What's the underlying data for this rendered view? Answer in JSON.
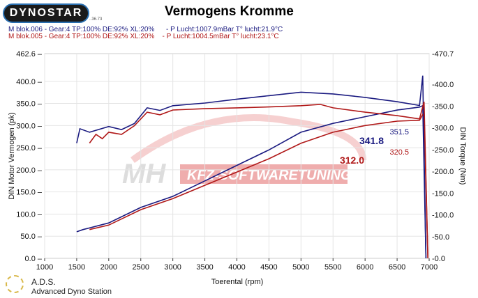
{
  "header": {
    "logo": "DYNOSTAR",
    "logo_sub": "..36.73",
    "title": "Vermogens Kromme",
    "run1": "M blok.006 - Gear:4 TP:100% DE:92% XL:20%      - P Lucht:1007.9mBar T° lucht:21.9°C",
    "run2": "M blok.005 - Gear:4 TP:100% DE:92% XL:20%    - P Lucht:1004.5mBar T° lucht:23.1°C"
  },
  "footer": {
    "ads_title": "A.D.S.",
    "ads_sub": "Advanced Dyno Station"
  },
  "watermark": "MH KFZ-SOFTWARETUNING",
  "chart_data": {
    "type": "line",
    "title": "Vermogens Kromme",
    "xlabel": "Toerental (rpm)",
    "ylabel": "DIN Motor Vermogen (pk)",
    "y2label": "DIN Torque (Nm)",
    "xlim": [
      1000,
      7000
    ],
    "ylim": [
      0,
      462.6
    ],
    "y2lim": [
      0,
      470.7
    ],
    "xticks": [
      "1000",
      "1500",
      "2000",
      "2500",
      "3000",
      "3500",
      "4000",
      "4500",
      "5000",
      "5500",
      "6000",
      "6500",
      "7000"
    ],
    "yticks": [
      "0.0",
      "50.0",
      "100.0",
      "150.0",
      "200.0",
      "250.0",
      "300.0",
      "350.0",
      "400.0",
      "462.6"
    ],
    "y2ticks": [
      "-0.0",
      "-50.0",
      "-100.0",
      "-150.0",
      "-200.0",
      "-250.0",
      "-300.0",
      "-350.0",
      "-400.0",
      "-470.7"
    ],
    "grid": true,
    "colors": {
      "blue": "#1a1a80",
      "red": "#b01818"
    },
    "series": [
      {
        "name": "M blok.006 vermogen",
        "axis": "left",
        "color": "#1a1a80",
        "peak_label": "341.8",
        "x": [
          1500,
          1600,
          2000,
          2500,
          3000,
          3500,
          4000,
          4500,
          5000,
          5500,
          6000,
          6500,
          6850,
          6900,
          6950
        ],
        "y": [
          60,
          65,
          80,
          115,
          140,
          175,
          210,
          245,
          285,
          305,
          320,
          335,
          341.8,
          345,
          0
        ]
      },
      {
        "name": "M blok.005 vermogen",
        "axis": "left",
        "color": "#b01818",
        "peak_label": "312.0",
        "x": [
          1700,
          2000,
          2500,
          3000,
          3500,
          4000,
          4500,
          5000,
          5500,
          6000,
          6500,
          6850,
          6920,
          6980
        ],
        "y": [
          65,
          75,
          110,
          135,
          165,
          195,
          225,
          260,
          285,
          300,
          310,
          312,
          330,
          0
        ]
      },
      {
        "name": "M blok.006 koppel",
        "axis": "right",
        "color": "#1a1a80",
        "peak_label": "351.5",
        "x": [
          1500,
          1550,
          1700,
          2000,
          2200,
          2400,
          2600,
          2800,
          3000,
          3500,
          4000,
          4500,
          5000,
          5500,
          6000,
          6500,
          6850,
          6900,
          6950
        ],
        "y": [
          265,
          298,
          290,
          303,
          296,
          310,
          346,
          340,
          351,
          357,
          366,
          374,
          382,
          378,
          370,
          360,
          351.5,
          420,
          0
        ]
      },
      {
        "name": "M blok.005 koppel",
        "axis": "right",
        "color": "#b01818",
        "peak_label": "320.5",
        "x": [
          1700,
          1800,
          1900,
          2000,
          2200,
          2400,
          2600,
          2800,
          3000,
          3500,
          4000,
          4500,
          5000,
          5300,
          5500,
          6000,
          6500,
          6850,
          6920,
          6980
        ],
        "y": [
          265,
          285,
          275,
          290,
          285,
          305,
          336,
          330,
          341,
          344,
          346,
          348,
          351,
          354,
          346,
          336,
          328,
          320.5,
          360,
          0
        ]
      }
    ]
  }
}
